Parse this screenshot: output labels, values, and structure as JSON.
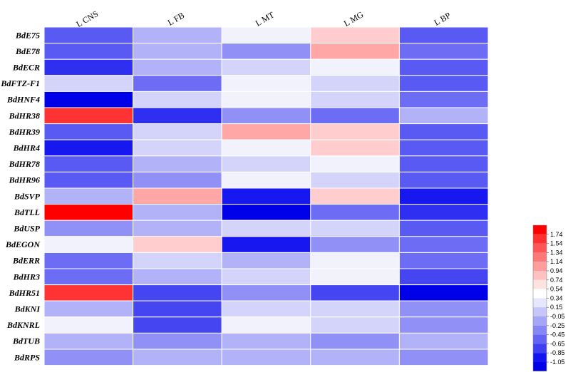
{
  "chart_data": {
    "type": "heatmap",
    "title": "",
    "xlabel": "",
    "ylabel": "",
    "columns": [
      "L CNS",
      "L FB",
      "L MT",
      "L MG",
      "L BP"
    ],
    "rows": [
      "BdE75",
      "BdE78",
      "BdECR",
      "BdFTZ-F1",
      "BdHNF4",
      "BdHR38",
      "BdHR39",
      "BdHR4",
      "BdHR78",
      "BdHR96",
      "BdSVP",
      "BdTLL",
      "BdUSP",
      "BdEGON",
      "BdERR",
      "BdHR3",
      "BdHR51",
      "BdKNI",
      "BdKNRL",
      "BdTUB",
      "BdRPS"
    ],
    "values": [
      [
        -0.55,
        -0.05,
        0.34,
        0.74,
        -0.55
      ],
      [
        -0.55,
        -0.05,
        -0.25,
        0.94,
        -0.45
      ],
      [
        -0.75,
        -0.05,
        0.15,
        0.34,
        -0.55
      ],
      [
        0.15,
        -0.45,
        0.34,
        0.15,
        -0.55
      ],
      [
        -1.05,
        0.15,
        0.34,
        0.15,
        -0.45
      ],
      [
        1.54,
        -0.75,
        -0.25,
        -0.45,
        -0.05
      ],
      [
        -0.55,
        0.15,
        0.94,
        0.74,
        -0.55
      ],
      [
        -0.85,
        0.15,
        0.34,
        0.74,
        -0.55
      ],
      [
        -0.55,
        -0.05,
        0.15,
        0.34,
        -0.55
      ],
      [
        -0.55,
        -0.25,
        0.34,
        0.15,
        -0.55
      ],
      [
        -0.05,
        0.94,
        -0.85,
        0.74,
        -0.85
      ],
      [
        1.74,
        -0.05,
        -1.05,
        -0.45,
        -0.75
      ],
      [
        -0.25,
        -0.05,
        0.15,
        0.15,
        -0.55
      ],
      [
        0.34,
        0.74,
        -0.85,
        -0.25,
        -0.45
      ],
      [
        -0.45,
        0.15,
        -0.05,
        0.34,
        -0.45
      ],
      [
        -0.45,
        -0.05,
        0.15,
        0.34,
        -0.65
      ],
      [
        1.54,
        -0.65,
        -0.25,
        -0.65,
        -1.05
      ],
      [
        -0.05,
        -0.65,
        0.15,
        0.15,
        -0.25
      ],
      [
        0.34,
        -0.65,
        0.34,
        0.15,
        -0.25
      ],
      [
        -0.05,
        -0.25,
        -0.05,
        -0.25,
        -0.05
      ],
      [
        -0.25,
        -0.05,
        -0.05,
        -0.05,
        -0.25
      ]
    ],
    "legend": {
      "placement": "bottom-right",
      "ticks": [
        "1.74",
        "1.54",
        "1.34",
        "1.14",
        "0.94",
        "0.74",
        "0.54",
        "0.34",
        "0.15",
        "-0.05",
        "-0.25",
        "-0.45",
        "-0.65",
        "-0.85",
        "-1.05"
      ],
      "colors": [
        "#ff0000",
        "#ff3030",
        "#ff5555",
        "#ff7878",
        "#ff9c9c",
        "#ffc0c0",
        "#ffe2e2",
        "#ffffff",
        "#e6e6fc",
        "#c6c6fa",
        "#a6a6f8",
        "#8686f6",
        "#6464f4",
        "#4040f2",
        "#1414f0",
        "#0000e8"
      ]
    }
  }
}
